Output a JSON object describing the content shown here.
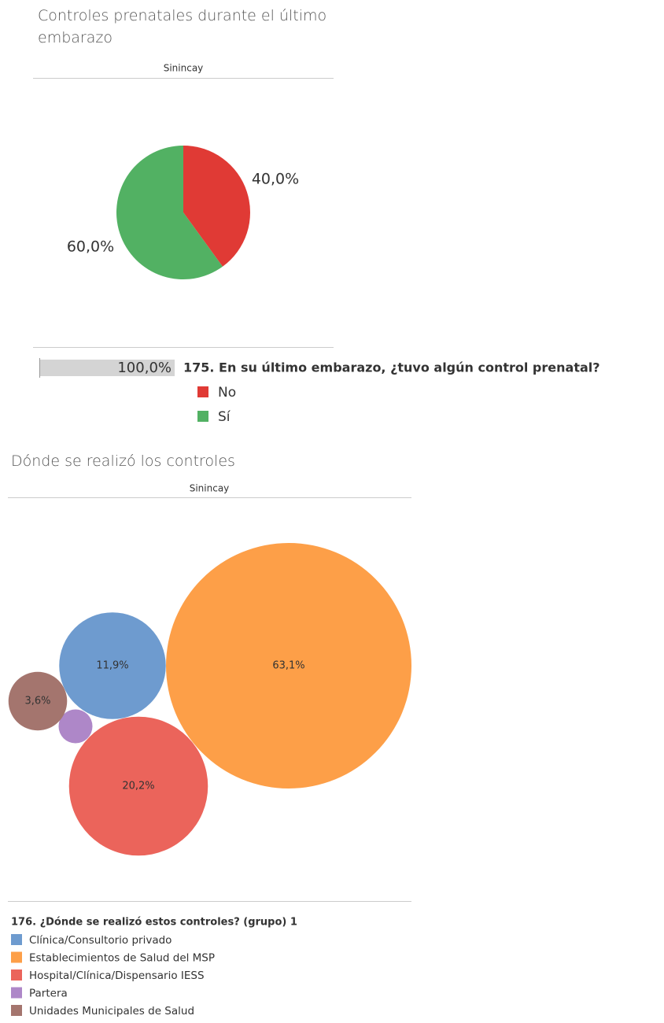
{
  "chart_data": [
    {
      "type": "pie",
      "title": "Controles prenatales  durante el último embarazo",
      "subtitle": "Sinincay",
      "categories": [
        "No",
        "Sí"
      ],
      "values": [
        40,
        60
      ],
      "value_labels": [
        "40,0%",
        "60,0%"
      ],
      "colors": [
        "#e03a35",
        "#52b163"
      ],
      "total": {
        "value": 100,
        "label": "100,0%"
      },
      "legend_title": "175. En su último embarazo, ¿tuvo algún control prenatal?"
    },
    {
      "type": "bubble",
      "title": "Dónde se realizó los controles",
      "subtitle": "Sinincay",
      "categories": [
        "Clínica/Consultorio privado",
        "Establecimientos de Salud del MSP",
        "Hospital/Clínica/Dispensario IESS",
        "Partera",
        "Unidades Municipales de Salud"
      ],
      "values": [
        11.9,
        63.1,
        20.2,
        1.2,
        3.6
      ],
      "value_labels": [
        "11,9%",
        "63,1%",
        "20,2%",
        null,
        "3,6%"
      ],
      "colors": [
        "#6e9bcf",
        "#fd9f48",
        "#eb645b",
        "#ae87c8",
        "#a4756e"
      ],
      "legend_title": "176. ¿Dónde se realizó estos controles? (grupo) 1"
    }
  ]
}
